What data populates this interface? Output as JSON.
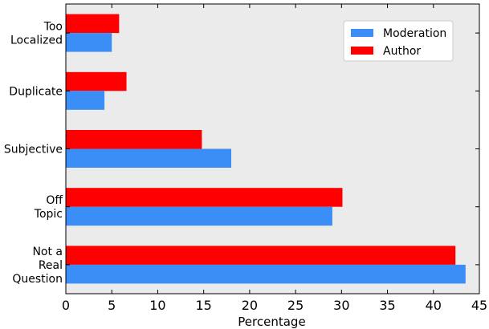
{
  "chart_data": {
    "type": "bar",
    "orientation": "horizontal",
    "categories": [
      [
        "Too",
        "Localized"
      ],
      [
        "Duplicate"
      ],
      [
        "Subjective"
      ],
      [
        "Off",
        "Topic"
      ],
      [
        "Not a",
        "Real",
        "Question"
      ]
    ],
    "series": [
      {
        "name": "Moderation",
        "color": "#3a8ef6",
        "values": [
          5.0,
          4.2,
          18.0,
          29.0,
          43.5
        ]
      },
      {
        "name": "Author",
        "color": "#ff0000",
        "values": [
          5.8,
          6.6,
          14.8,
          30.1,
          42.4
        ]
      }
    ],
    "xlabel": "Percentage",
    "ylabel": "",
    "xlim": [
      0,
      45
    ],
    "xticks": [
      0,
      5,
      10,
      15,
      20,
      25,
      30,
      35,
      40,
      45
    ],
    "background": "#ebebeb",
    "grid": false,
    "legend_position": "top-right"
  }
}
